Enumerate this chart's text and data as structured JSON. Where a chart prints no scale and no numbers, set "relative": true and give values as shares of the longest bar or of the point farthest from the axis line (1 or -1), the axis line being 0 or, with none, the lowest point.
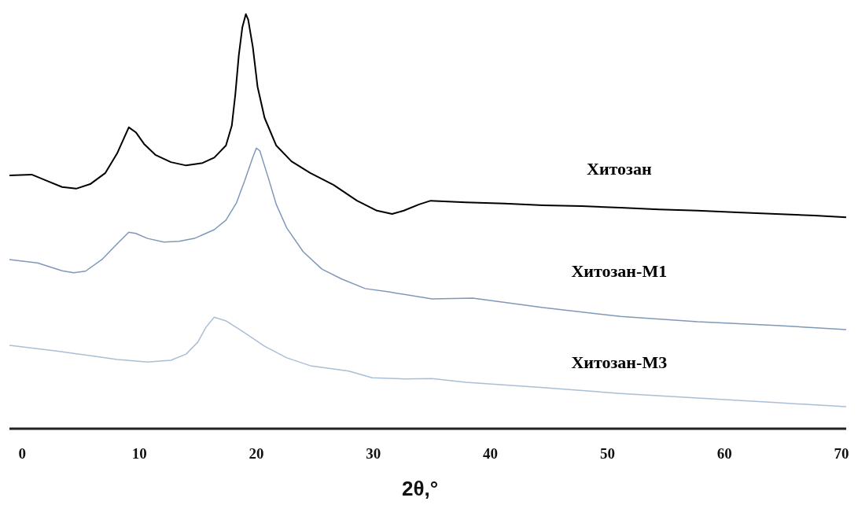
{
  "chart_data": {
    "type": "line",
    "relative": true,
    "xlabel": "2θ,°",
    "xlim": [
      -1.1,
      70.4
    ],
    "xticks": [
      0,
      10,
      20,
      30,
      40,
      50,
      60,
      70
    ],
    "grid": false,
    "legend": false,
    "marker": "none",
    "line_style": "solid",
    "series": [
      {
        "name": "Хитозан",
        "color": "#000000",
        "x": [
          -1.1,
          0.8,
          2.1,
          3.4,
          4.6,
          5.8,
          7.1,
          8.1,
          9.1,
          9.7,
          10.4,
          11.4,
          12.7,
          14.0,
          15.4,
          16.4,
          17.4,
          17.9,
          18.2,
          18.5,
          18.8,
          19.1,
          19.3,
          19.7,
          20.1,
          20.7,
          21.7,
          23.0,
          24.6,
          26.6,
          28.6,
          30.3,
          31.6,
          32.6,
          33.9,
          34.9,
          37.9,
          41.2,
          44.5,
          47.8,
          51.1,
          54.4,
          57.7,
          61.1,
          64.4,
          67.7,
          70.4
        ],
        "values": [
          0.611,
          0.613,
          0.598,
          0.583,
          0.579,
          0.59,
          0.617,
          0.664,
          0.727,
          0.715,
          0.687,
          0.66,
          0.643,
          0.635,
          0.641,
          0.654,
          0.683,
          0.731,
          0.806,
          0.901,
          0.968,
          1,
          0.987,
          0.92,
          0.825,
          0.75,
          0.683,
          0.645,
          0.617,
          0.588,
          0.55,
          0.526,
          0.518,
          0.526,
          0.541,
          0.55,
          0.546,
          0.543,
          0.539,
          0.537,
          0.533,
          0.529,
          0.526,
          0.522,
          0.518,
          0.514,
          0.51
        ]
      },
      {
        "name": "Хитозан-М1",
        "color": "#7f98b8",
        "x": [
          -1.1,
          1.3,
          3.4,
          4.4,
          5.4,
          6.8,
          8.1,
          9.1,
          9.7,
          10.7,
          12.1,
          13.4,
          14.7,
          16.4,
          17.4,
          18.3,
          19.0,
          19.7,
          20.0,
          20.3,
          21.0,
          21.7,
          22.6,
          24.0,
          25.6,
          27.3,
          29.3,
          31.3,
          35.0,
          38.5,
          44.5,
          51.1,
          57.7,
          64.4,
          70.4
        ],
        "values": [
          0.408,
          0.4,
          0.381,
          0.376,
          0.38,
          0.408,
          0.446,
          0.474,
          0.471,
          0.459,
          0.45,
          0.452,
          0.459,
          0.48,
          0.503,
          0.545,
          0.598,
          0.655,
          0.677,
          0.67,
          0.607,
          0.541,
          0.484,
          0.427,
          0.385,
          0.361,
          0.338,
          0.33,
          0.313,
          0.315,
          0.292,
          0.271,
          0.258,
          0.249,
          0.239
        ]
      },
      {
        "name": "Хитозан-М3",
        "color": "#a9bfd6",
        "x": [
          -1.1,
          2.8,
          6.1,
          8.1,
          10.7,
          12.7,
          14.0,
          15.0,
          15.7,
          16.4,
          17.4,
          18.7,
          20.7,
          22.6,
          24.6,
          27.9,
          29.9,
          32.6,
          35.0,
          37.9,
          44.5,
          51.1,
          57.7,
          64.4,
          70.4
        ],
        "values": [
          0.201,
          0.188,
          0.175,
          0.167,
          0.161,
          0.165,
          0.18,
          0.209,
          0.245,
          0.269,
          0.26,
          0.237,
          0.199,
          0.171,
          0.152,
          0.139,
          0.123,
          0.12,
          0.121,
          0.112,
          0.099,
          0.085,
          0.074,
          0.063,
          0.053
        ]
      }
    ]
  }
}
